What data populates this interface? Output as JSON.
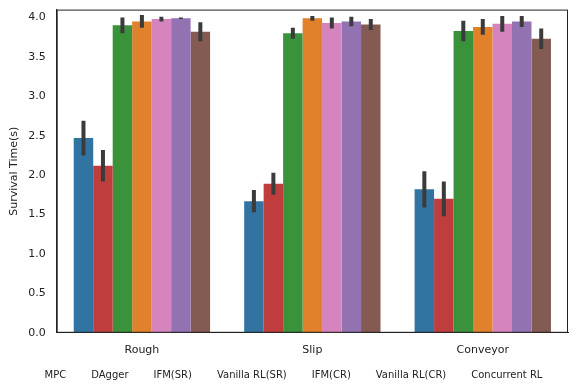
{
  "chart_data": {
    "type": "bar",
    "y_label": "Survival Time(s)",
    "categories": [
      "Rough",
      "Slip",
      "Conveyor"
    ],
    "ylim": [
      0,
      4.1
    ],
    "yticks": [
      {
        "value": 0,
        "label": "0.0"
      },
      {
        "value": 0.5,
        "label": "0.5"
      },
      {
        "value": 1,
        "label": "1.0"
      },
      {
        "value": 1.5,
        "label": "1.5"
      },
      {
        "value": 2,
        "label": "2.0"
      },
      {
        "value": 2.5,
        "label": "2.5"
      },
      {
        "value": 3,
        "label": "3.0"
      },
      {
        "value": 3.5,
        "label": "3.5"
      },
      {
        "value": 4,
        "label": "4.0"
      }
    ],
    "grid": false,
    "legend": "bottom",
    "series": [
      {
        "name": "MPC",
        "color": "#3274a1",
        "values": [
          2.47,
          1.67,
          1.82
        ],
        "errors": [
          0.22,
          0.14,
          0.23
        ]
      },
      {
        "name": "DAgger",
        "color": "#c03d3e",
        "values": [
          2.12,
          1.89,
          1.7
        ],
        "errors": [
          0.2,
          0.14,
          0.22
        ]
      },
      {
        "name": "IFM(SR)",
        "color": "#3a923a",
        "values": [
          3.9,
          3.8,
          3.83
        ],
        "errors": [
          0.1,
          0.07,
          0.13
        ]
      },
      {
        "name": "Vanilla RL(SR)",
        "color": "#e1812c",
        "values": [
          3.95,
          3.99,
          3.88
        ],
        "errors": [
          0.08,
          0.03,
          0.1
        ]
      },
      {
        "name": "IFM(CR)",
        "color": "#d684bd",
        "values": [
          3.98,
          3.93,
          3.92
        ],
        "errors": [
          0.03,
          0.07,
          0.1
        ]
      },
      {
        "name": "Vanilla RL(CR)",
        "color": "#9372b2",
        "values": [
          3.99,
          3.95,
          3.95
        ],
        "errors": [
          0.01,
          0.06,
          0.07
        ]
      },
      {
        "name": "Concurrent RL",
        "color": "#845b53",
        "values": [
          3.82,
          3.91,
          3.73
        ],
        "errors": [
          0.12,
          0.07,
          0.13
        ]
      }
    ]
  }
}
